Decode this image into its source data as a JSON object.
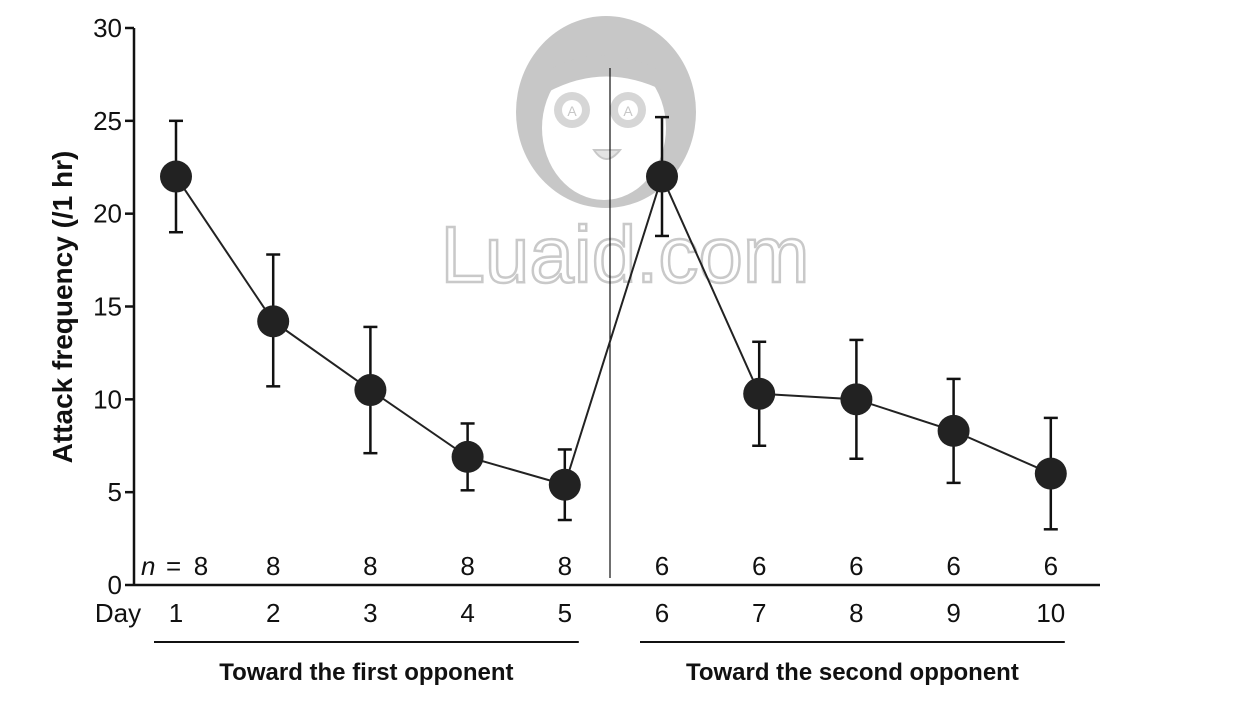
{
  "chart_data": {
    "type": "line",
    "ylabel": "Attack frequency (/1 hr)",
    "xlabel": "Day",
    "ylim": [
      0,
      30
    ],
    "yticks": [
      0,
      5,
      10,
      15,
      20,
      25,
      30
    ],
    "x": [
      1,
      2,
      3,
      4,
      5,
      6,
      7,
      8,
      9,
      10
    ],
    "values": [
      22,
      14.2,
      10.5,
      6.9,
      5.4,
      22,
      10.3,
      10,
      8.3,
      6
    ],
    "error_upper": [
      25,
      17.8,
      13.9,
      8.7,
      7.3,
      25.2,
      13.1,
      13.2,
      11.1,
      9
    ],
    "error_lower": [
      19,
      10.7,
      7.1,
      5.1,
      3.5,
      18.8,
      7.5,
      6.8,
      5.5,
      3
    ],
    "n_prefix": "n",
    "n_equals": "=",
    "n_values": [
      "8",
      "8",
      "8",
      "8",
      "8",
      "6",
      "6",
      "6",
      "6",
      "6"
    ],
    "groups": [
      {
        "label": "Toward the first opponent",
        "days": [
          1,
          5
        ]
      },
      {
        "label": "Toward the second opponent",
        "days": [
          6,
          10
        ]
      }
    ],
    "divider_after_day": 5,
    "marker_color": "#222222",
    "line_color": "#222222",
    "grid": false
  },
  "watermark": {
    "text": "Luaid.com",
    "badge_text": "A"
  }
}
